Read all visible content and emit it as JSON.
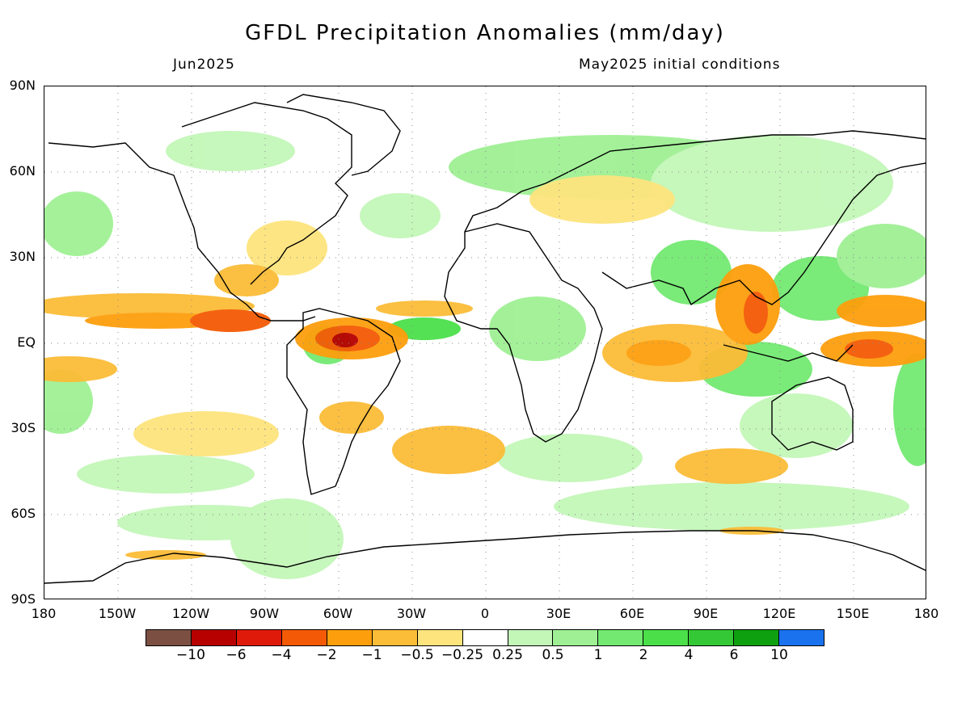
{
  "header": {
    "title": "GFDL Precipitation Anomalies (mm/day)",
    "valid_month": "Jun2025",
    "init_text": "May2025 initial conditions"
  },
  "axes": {
    "lat_labels": [
      "90N",
      "60N",
      "30N",
      "EQ",
      "30S",
      "60S",
      "90S"
    ],
    "lon_labels": [
      "180",
      "150W",
      "120W",
      "90W",
      "60W",
      "30W",
      "0",
      "30E",
      "60E",
      "90E",
      "120E",
      "150E",
      "180"
    ]
  },
  "legend": {
    "colors": [
      "#7b5042",
      "#b70000",
      "#e01a0a",
      "#f45a05",
      "#fd9f0d",
      "#fbbc37",
      "#fde47d",
      "#ffffff",
      "#c3f7b8",
      "#9ff094",
      "#73e972",
      "#4be04a",
      "#35c836",
      "#0fa00f",
      "#1a72ee"
    ],
    "labels": [
      "−10",
      "−6",
      "−4",
      "−2",
      "−1",
      "−0.5",
      "−0.25",
      "0.25",
      "0.5",
      "1",
      "2",
      "4",
      "6",
      "10"
    ]
  },
  "map": {
    "projection": "cylindrical equidistant",
    "lon_range": [
      -180,
      180
    ],
    "lat_range": [
      -90,
      90
    ],
    "grid_lines": "dotted every 30 degrees",
    "wet_colors": [
      "#c3f7b8",
      "#9ff094",
      "#73e972",
      "#4be04a"
    ],
    "dry_colors": [
      "#fde47d",
      "#fbbc37",
      "#fd9f0d",
      "#f45a05",
      "#e01a0a",
      "#b70000"
    ]
  }
}
